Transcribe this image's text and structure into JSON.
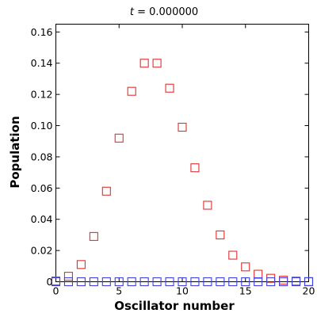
{
  "chart_data": {
    "type": "scatter",
    "title_var": "t",
    "title_eq": " = ",
    "title_val": "0.000000",
    "xlabel": "Oscillator number",
    "ylabel": "Population",
    "xlim": [
      0,
      20
    ],
    "ylim": [
      0,
      0.165
    ],
    "xticks": [
      0,
      5,
      10,
      15,
      20
    ],
    "xtick_labels": [
      "0",
      "5",
      "10",
      "15",
      "20"
    ],
    "yticks": [
      0,
      0.02,
      0.04,
      0.06,
      0.08,
      0.1,
      0.12,
      0.14,
      0.16
    ],
    "ytick_labels": [
      "0",
      "0.02",
      "0.04",
      "0.06",
      "0.08",
      "0.10",
      "0.12",
      "0.14",
      "0.16"
    ],
    "grid": false,
    "marker": "square-open",
    "series": [
      {
        "color": "#e03030",
        "x": [
          0,
          1,
          2,
          3,
          4,
          5,
          6,
          7,
          8,
          9,
          10,
          11,
          12,
          13,
          14,
          15,
          16,
          17,
          18,
          19,
          20
        ],
        "y": [
          0.0005,
          0.0035,
          0.011,
          0.029,
          0.058,
          0.092,
          0.122,
          0.14,
          0.14,
          0.124,
          0.099,
          0.073,
          0.049,
          0.03,
          0.017,
          0.0095,
          0.0048,
          0.0022,
          0.001,
          0.0004,
          0.0001
        ]
      },
      {
        "color": "#4040e0",
        "x": [
          0,
          1,
          2,
          3,
          4,
          5,
          6,
          7,
          8,
          9,
          10,
          11,
          12,
          13,
          14,
          15,
          16,
          17,
          18,
          19,
          20
        ],
        "y": [
          0,
          0,
          0,
          0,
          0,
          0,
          0,
          0,
          0,
          0,
          0,
          0,
          0,
          0,
          0,
          0,
          0,
          0,
          0,
          0,
          0
        ]
      }
    ]
  }
}
